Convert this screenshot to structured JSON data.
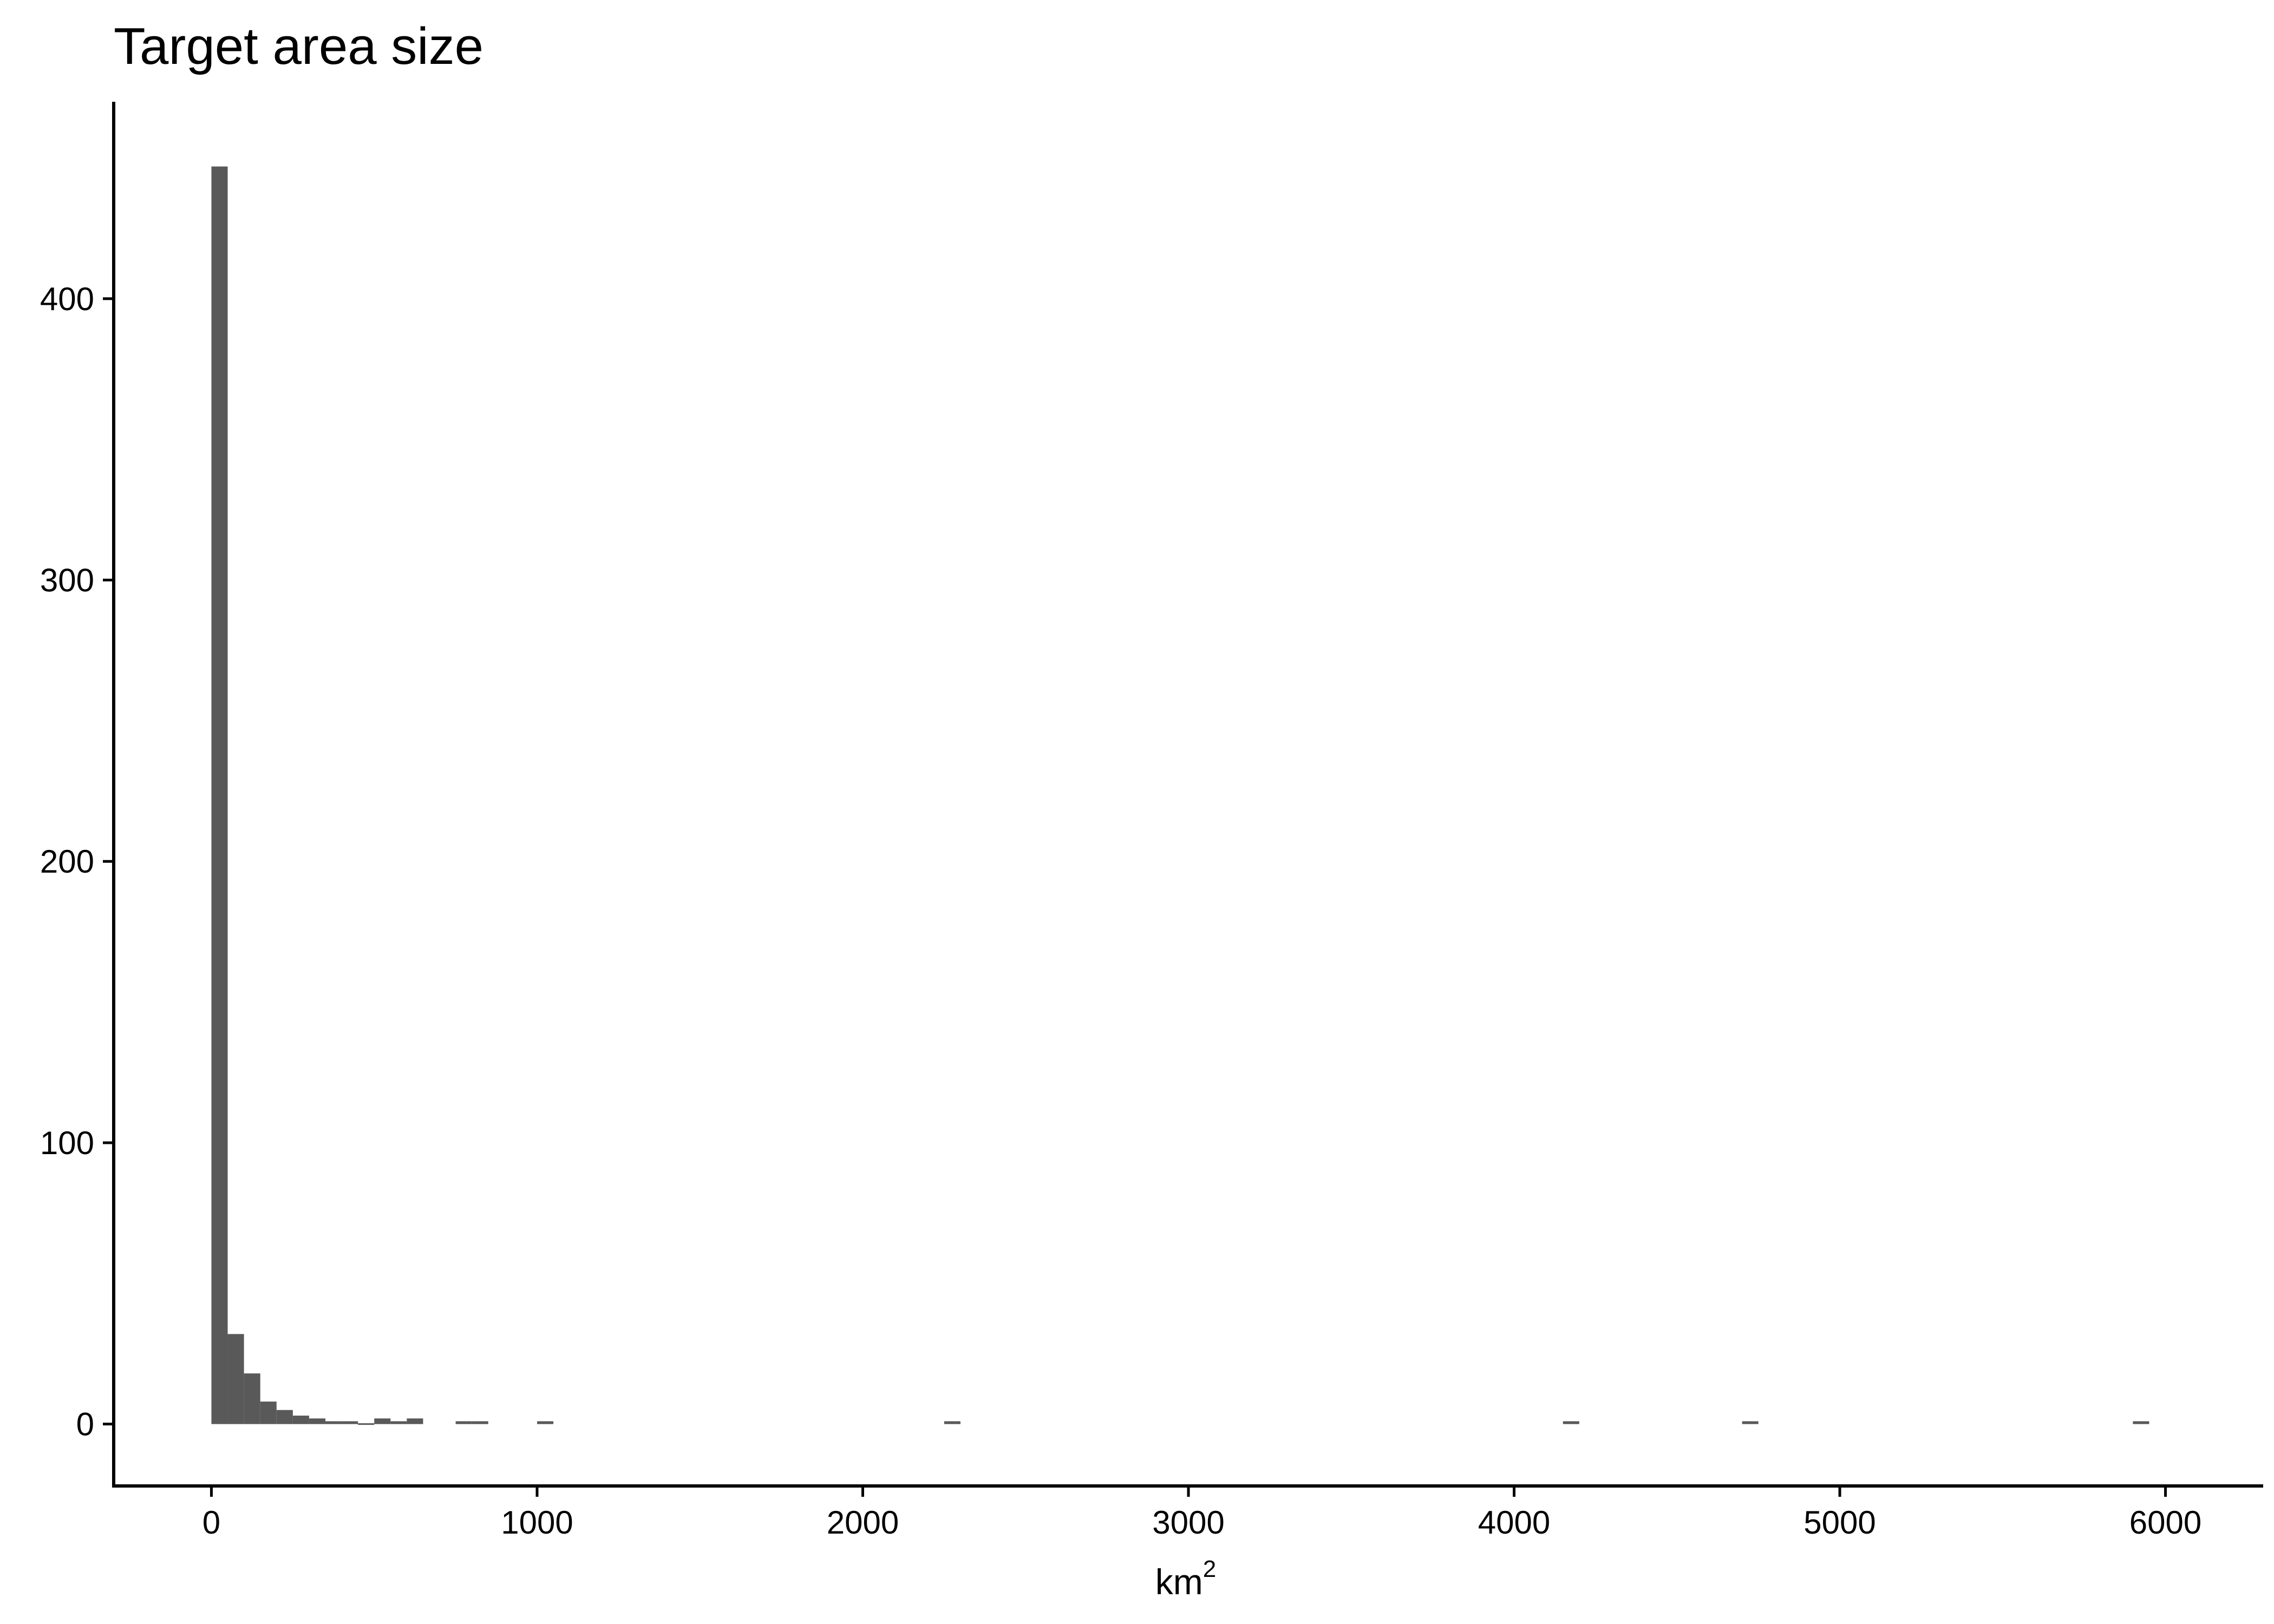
{
  "chart_data": {
    "type": "bar",
    "title": "Target area size",
    "xlabel": "km",
    "xlabel_superscript": "2",
    "ylabel": "",
    "bin_width": 50,
    "xlim": [
      -300,
      6300
    ],
    "ylim": [
      -22,
      470
    ],
    "x_ticks": [
      0,
      1000,
      2000,
      3000,
      4000,
      5000,
      6000
    ],
    "x_tick_labels": [
      "0",
      "1000",
      "2000",
      "3000",
      "4000",
      "5000",
      "6000"
    ],
    "y_ticks": [
      0,
      100,
      200,
      300,
      400
    ],
    "y_tick_labels": [
      "0",
      "100",
      "200",
      "300",
      "400"
    ],
    "grid": false,
    "legend": "none",
    "bar_color": "#595959",
    "bins": [
      {
        "x_start": 0,
        "x_end": 50,
        "count": 447
      },
      {
        "x_start": 50,
        "x_end": 100,
        "count": 32
      },
      {
        "x_start": 100,
        "x_end": 150,
        "count": 18
      },
      {
        "x_start": 150,
        "x_end": 200,
        "count": 8
      },
      {
        "x_start": 200,
        "x_end": 250,
        "count": 5
      },
      {
        "x_start": 250,
        "x_end": 300,
        "count": 3
      },
      {
        "x_start": 300,
        "x_end": 350,
        "count": 2
      },
      {
        "x_start": 350,
        "x_end": 400,
        "count": 1
      },
      {
        "x_start": 400,
        "x_end": 450,
        "count": 1
      },
      {
        "x_start": 450,
        "x_end": 500,
        "count": 0
      },
      {
        "x_start": 500,
        "x_end": 550,
        "count": 2
      },
      {
        "x_start": 550,
        "x_end": 600,
        "count": 1
      },
      {
        "x_start": 600,
        "x_end": 650,
        "count": 2
      },
      {
        "x_start": 750,
        "x_end": 800,
        "count": 1
      },
      {
        "x_start": 800,
        "x_end": 850,
        "count": 1
      },
      {
        "x_start": 1000,
        "x_end": 1050,
        "count": 1
      },
      {
        "x_start": 2250,
        "x_end": 2300,
        "count": 1
      },
      {
        "x_start": 4150,
        "x_end": 4200,
        "count": 1
      },
      {
        "x_start": 4700,
        "x_end": 4750,
        "count": 1
      },
      {
        "x_start": 5900,
        "x_end": 5950,
        "count": 1
      }
    ]
  }
}
